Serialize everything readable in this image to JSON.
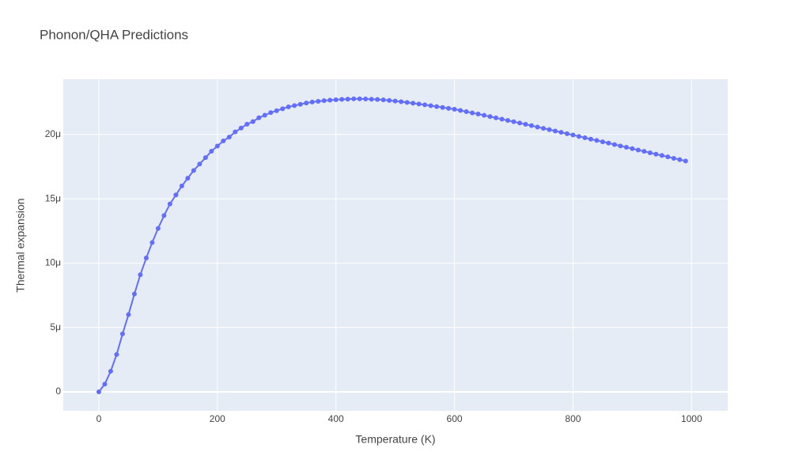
{
  "chart_data": {
    "type": "line",
    "title": "Phonon/QHA Predictions",
    "x_label": "Temperature (K)",
    "y_label": "Thermal expansion",
    "x": [
      0,
      10,
      20,
      30,
      40,
      50,
      60,
      70,
      80,
      90,
      100,
      110,
      120,
      130,
      140,
      150,
      160,
      170,
      180,
      190,
      200,
      210,
      220,
      230,
      240,
      250,
      260,
      270,
      280,
      290,
      300,
      310,
      320,
      330,
      340,
      350,
      360,
      370,
      380,
      390,
      400,
      410,
      420,
      430,
      440,
      450,
      460,
      470,
      480,
      490,
      500,
      510,
      520,
      530,
      540,
      550,
      560,
      570,
      580,
      590,
      600,
      610,
      620,
      630,
      640,
      650,
      660,
      670,
      680,
      690,
      700,
      710,
      720,
      730,
      740,
      750,
      760,
      770,
      780,
      790,
      800,
      810,
      820,
      830,
      840,
      850,
      860,
      870,
      880,
      890,
      900,
      910,
      920,
      930,
      940,
      950,
      960,
      970,
      980,
      990
    ],
    "series": [
      {
        "name": "Thermal expansion",
        "color": "#636efa",
        "values": [
          0,
          6e-07,
          1.6e-06,
          2.9e-06,
          4.5e-06,
          6e-06,
          7.6e-06,
          9.1e-06,
          1.04e-05,
          1.16e-05,
          1.27e-05,
          1.37e-05,
          1.46e-05,
          1.53e-05,
          1.6e-05,
          1.66e-05,
          1.72e-05,
          1.77e-05,
          1.82e-05,
          1.87e-05,
          1.91e-05,
          1.95e-05,
          1.98e-05,
          2.02e-05,
          2.05e-05,
          2.08e-05,
          2.1e-05,
          2.13e-05,
          2.15e-05,
          2.17e-05,
          2.185e-05,
          2.2e-05,
          2.215e-05,
          2.225e-05,
          2.235e-05,
          2.245e-05,
          2.252e-05,
          2.258e-05,
          2.263e-05,
          2.267e-05,
          2.27e-05,
          2.273e-05,
          2.275e-05,
          2.277e-05,
          2.277e-05,
          2.276e-05,
          2.274e-05,
          2.272e-05,
          2.269e-05,
          2.265e-05,
          2.26e-05,
          2.255e-05,
          2.249e-05,
          2.243e-05,
          2.237e-05,
          2.231e-05,
          2.224e-05,
          2.217e-05,
          2.21e-05,
          2.203e-05,
          2.196e-05,
          2.187e-05,
          2.178e-05,
          2.168e-05,
          2.159e-05,
          2.149e-05,
          2.139e-05,
          2.129e-05,
          2.119e-05,
          2.109e-05,
          2.099e-05,
          2.089e-05,
          2.079e-05,
          2.069e-05,
          2.058e-05,
          2.048e-05,
          2.038e-05,
          2.027e-05,
          2.017e-05,
          2.006e-05,
          1.996e-05,
          1.985e-05,
          1.975e-05,
          1.964e-05,
          1.954e-05,
          1.943e-05,
          1.933e-05,
          1.922e-05,
          1.911e-05,
          1.901e-05,
          1.89e-05,
          1.879e-05,
          1.869e-05,
          1.858e-05,
          1.847e-05,
          1.837e-05,
          1.826e-05,
          1.815e-05,
          1.805e-05,
          1.794e-05
        ]
      }
    ],
    "xlim": [
      -60,
      1061
    ],
    "ylim": [
      -1.48e-06,
      2.43e-05
    ],
    "xticks": [
      0,
      200,
      400,
      600,
      800,
      1000
    ],
    "yticks": [
      0,
      {
        "value": 5e-06,
        "label": "5μ"
      },
      {
        "value": 1e-05,
        "label": "10μ"
      },
      {
        "value": 1.5e-05,
        "label": "15μ"
      },
      {
        "value": 2e-05,
        "label": "20μ"
      }
    ],
    "grid": true,
    "markers": true
  }
}
